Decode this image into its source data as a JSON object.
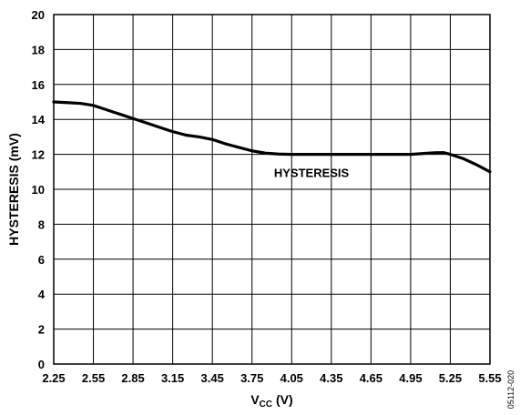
{
  "chart_data": {
    "type": "line",
    "xlabel_main": "V",
    "xlabel_sub": "CC",
    "xlabel_unit": " (V)",
    "ylabel": "HYSTERESIS (mV)",
    "xlim": [
      2.25,
      5.55
    ],
    "ylim": [
      0,
      20
    ],
    "x_ticks": [
      "2.25",
      "2.55",
      "2.85",
      "3.15",
      "3.45",
      "3.75",
      "4.05",
      "4.35",
      "4.65",
      "4.95",
      "5.25",
      "5.55"
    ],
    "y_ticks": [
      "0",
      "2",
      "4",
      "6",
      "8",
      "10",
      "12",
      "14",
      "16",
      "18",
      "20"
    ],
    "grid": true,
    "series": [
      {
        "name": "HYSTERESIS",
        "color": "#000000",
        "x": [
          2.25,
          2.35,
          2.45,
          2.55,
          2.65,
          2.75,
          2.85,
          2.95,
          3.05,
          3.15,
          3.25,
          3.35,
          3.45,
          3.55,
          3.65,
          3.75,
          3.85,
          3.95,
          4.05,
          4.35,
          4.65,
          4.95,
          5.05,
          5.1,
          5.15,
          5.2,
          5.25,
          5.35,
          5.45,
          5.55
        ],
        "y": [
          15.0,
          14.96,
          14.92,
          14.8,
          14.55,
          14.3,
          14.05,
          13.8,
          13.55,
          13.3,
          13.1,
          13.0,
          12.85,
          12.6,
          12.4,
          12.2,
          12.07,
          12.02,
          12.0,
          12.0,
          12.0,
          12.0,
          12.05,
          12.08,
          12.1,
          12.1,
          12.0,
          11.75,
          11.4,
          11.0
        ]
      }
    ],
    "annotation": "HYSTERESIS",
    "figure_id": "05112-020"
  }
}
